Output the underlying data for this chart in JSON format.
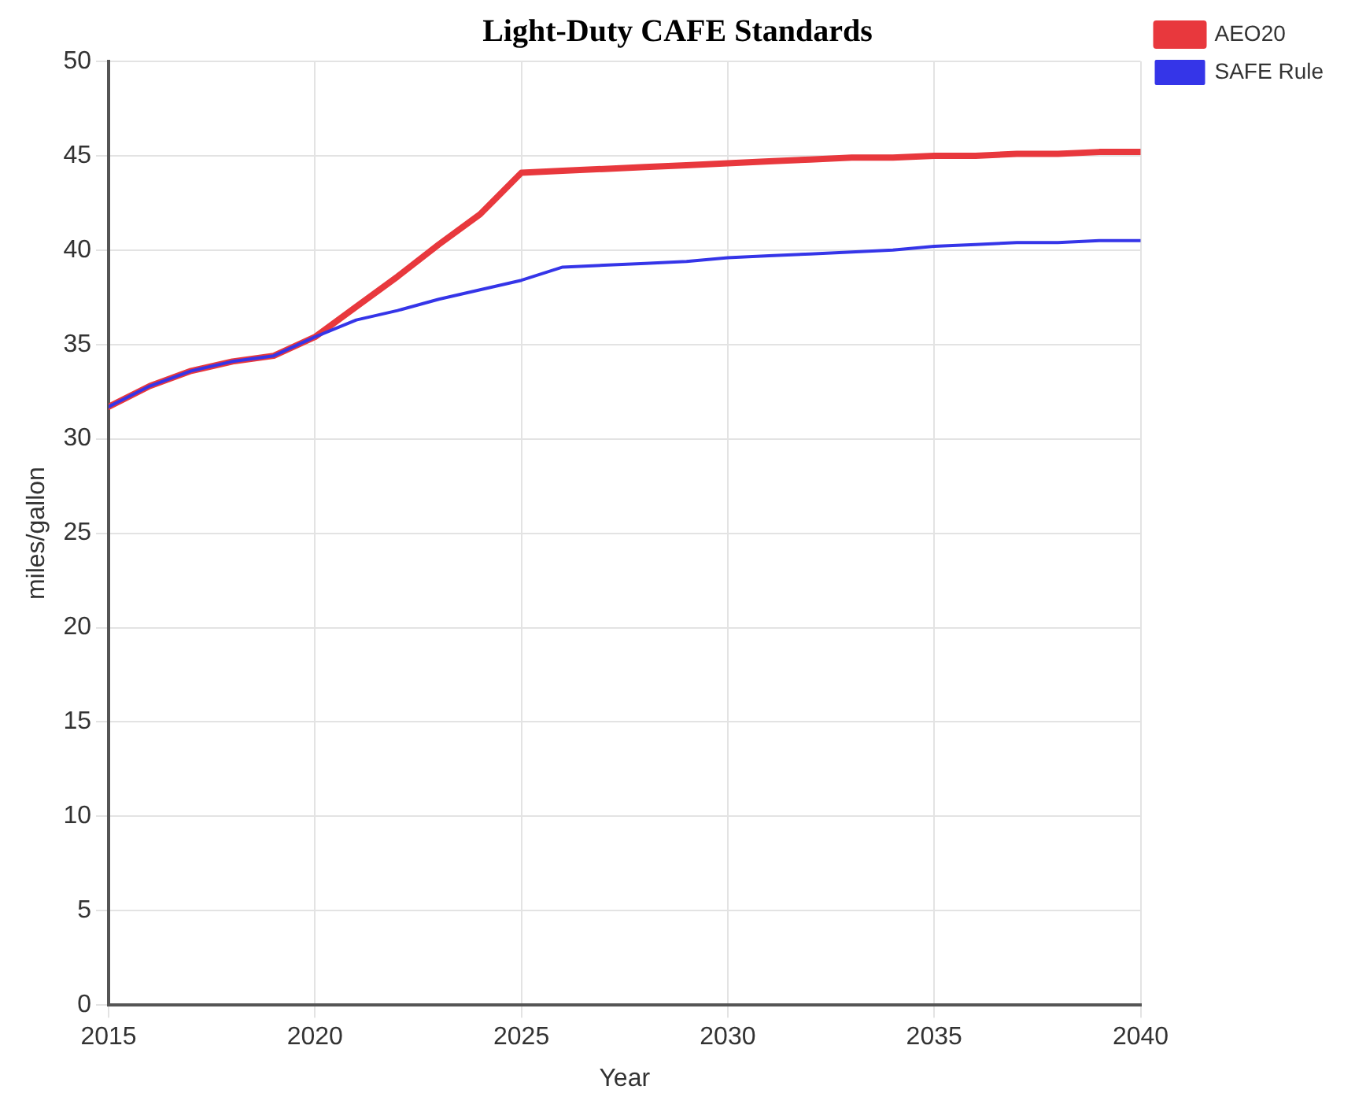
{
  "chart_data": {
    "type": "line",
    "title": "Light-Duty CAFE Standards",
    "xlabel": "Year",
    "ylabel": "miles/gallon",
    "x": [
      2015,
      2016,
      2017,
      2018,
      2019,
      2020,
      2021,
      2022,
      2023,
      2024,
      2025,
      2026,
      2027,
      2028,
      2029,
      2030,
      2031,
      2032,
      2033,
      2034,
      2035,
      2036,
      2037,
      2038,
      2039,
      2040
    ],
    "series": [
      {
        "name": "AEO20",
        "color": "#e8383d",
        "values": [
          31.7,
          32.8,
          33.6,
          34.1,
          34.4,
          35.4,
          37.0,
          38.6,
          40.3,
          41.9,
          44.1,
          44.2,
          44.3,
          44.4,
          44.5,
          44.6,
          44.7,
          44.8,
          44.9,
          44.9,
          45.0,
          45.0,
          45.1,
          45.1,
          45.2,
          45.2
        ]
      },
      {
        "name": "SAFE Rule",
        "color": "#3535e8",
        "values": [
          31.7,
          32.8,
          33.6,
          34.1,
          34.4,
          35.4,
          36.3,
          36.8,
          37.4,
          37.9,
          38.4,
          39.1,
          39.2,
          39.3,
          39.4,
          39.6,
          39.7,
          39.8,
          39.9,
          40.0,
          40.2,
          40.3,
          40.4,
          40.4,
          40.5,
          40.5
        ]
      }
    ],
    "xlim": [
      2015,
      2040
    ],
    "xticks": [
      2015,
      2020,
      2025,
      2030,
      2035,
      2040
    ],
    "ylim": [
      0,
      50
    ],
    "yticks": [
      0,
      5,
      10,
      15,
      20,
      25,
      30,
      35,
      40,
      45,
      50
    ],
    "grid": true,
    "legend": "top right",
    "marker": "none",
    "line_style": "solid"
  }
}
